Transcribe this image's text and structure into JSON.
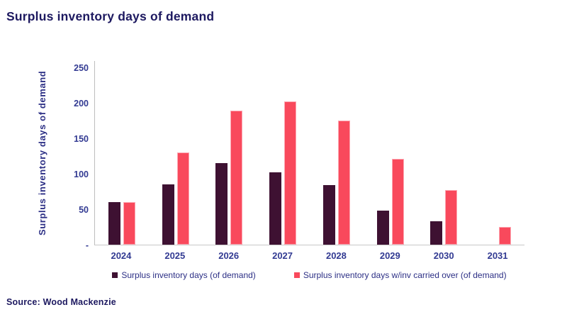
{
  "page": {
    "title": "Surplus inventory days of demand",
    "source": "Source: Wood Mackenzie"
  },
  "colors": {
    "title_text": "#1d1960",
    "axis_text": "#323a92",
    "legend_text": "#2c2f85",
    "axis_line": "#c9c9c9",
    "series1_fill": "#3e1132",
    "series2_fill": "#f9495c",
    "series2_border": "#fda7b2"
  },
  "chart_data": {
    "type": "bar",
    "title": "Surplus inventory days of demand",
    "ylabel": "Surplus inventory days of demand",
    "xlabel": "",
    "categories": [
      "2024",
      "2025",
      "2026",
      "2027",
      "2028",
      "2029",
      "2030",
      "2031"
    ],
    "series": [
      {
        "name": "Surplus inventory days (of demand)",
        "color": "#3e1132",
        "values": [
          60,
          85,
          115,
          102,
          84,
          48,
          33,
          0
        ]
      },
      {
        "name": "Surplus inventory days w/inv carried over (of demand)",
        "color": "#f9495c",
        "border_color": "#fda7b2",
        "values": [
          60,
          131,
          190,
          203,
          176,
          122,
          77,
          25
        ]
      }
    ],
    "ylim": [
      0,
      250
    ],
    "y_tick_values": [
      250,
      200,
      150,
      100,
      50,
      0
    ],
    "y_tick_labels": [
      "250",
      "200",
      "150",
      "100",
      "50",
      "-"
    ],
    "grid": false,
    "legend_position": "bottom"
  }
}
